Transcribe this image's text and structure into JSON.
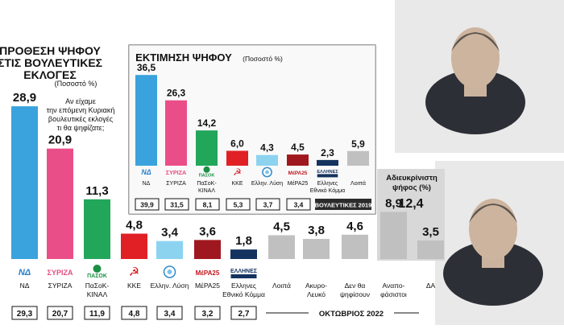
{
  "colors": {
    "nd": "#3aa2dd",
    "syriza": "#ea4e88",
    "pasok": "#22a65a",
    "kke": "#e02025",
    "elliniki_lysi": "#8cd3f0",
    "mera25": "#a0181f",
    "ellines": "#14335f",
    "other": "#c0c0c0",
    "inner_bg": "#f1f2f1",
    "band_dark": "#2b2b2b"
  },
  "chart_data": [
    {
      "type": "bar",
      "id": "main",
      "title": "ΠΡΟΘΕΣΗ ΨΗΦΟΥ ΣΤΙΣ ΒΟΥΛΕΥΤΙΚΕΣ ΕΚΛΟΓΕΣ",
      "title_lines": [
        "ΠΡΟΘΕΣΗ ΨΗΦΟΥ",
        "ΣΤΙΣ ΒΟΥΛΕΥΤΙΚΕΣ",
        "ΕΚΛΟΓΕΣ"
      ],
      "subtitle": "(Ποσοστό %)",
      "question_lines": [
        "Αν είχαμε",
        "την επόμενη Κυριακή",
        "βουλευτικές εκλογές",
        "τι θα ψηφίζατε;"
      ],
      "categories": [
        "ΝΔ",
        "ΣΥΡΙΖΑ",
        "ΠαΣοΚ-ΚΙΝΑΛ",
        "ΚΚΕ",
        "Ελλην. Λύση",
        "ΜέΡΑ25",
        "Ελληνες Εθνικό Κόμμα",
        "Λοιπά",
        "Ακυρο-Λευκό",
        "Δεν θα ψηφίσουν",
        "Αναπο-φάσιστοι",
        "ΔΑ"
      ],
      "category_lines": [
        [
          "ΝΔ"
        ],
        [
          "ΣΥΡΙΖΑ"
        ],
        [
          "ΠαΣοΚ-",
          "ΚΙΝΑΛ"
        ],
        [
          "ΚΚΕ"
        ],
        [
          "Ελλην. Λύση"
        ],
        [
          "ΜέΡΑ25"
        ],
        [
          "Ελληνες",
          "Εθνικό Κόμμα"
        ],
        [
          "Λοιπά"
        ],
        [
          "Ακυρο-",
          "Λευκό"
        ],
        [
          "Δεν θα",
          "ψηφίσουν"
        ],
        [
          "Αναπο-",
          "φάσιστοι"
        ],
        [
          "ΔΑ"
        ]
      ],
      "values": [
        28.9,
        20.9,
        11.3,
        4.8,
        3.4,
        3.6,
        1.8,
        4.5,
        3.8,
        4.6,
        8.9,
        3.5
      ],
      "value_labels": [
        "28,9",
        "20,9",
        "11,3",
        "4,8",
        "3,4",
        "3,6",
        "1,8",
        "4,5",
        "3,8",
        "4,6",
        "8,9",
        "3,5"
      ],
      "colors": [
        "#3aa2dd",
        "#ea4e88",
        "#22a65a",
        "#e02025",
        "#8cd3f0",
        "#a0181f",
        "#14335f",
        "#c0c0c0",
        "#c0c0c0",
        "#c0c0c0",
        "#c0c0c0",
        "#c0c0c0"
      ],
      "previous_values": [
        29.3,
        20.7,
        11.9,
        4.8,
        3.4,
        3.2,
        2.7
      ],
      "previous_labels": [
        "29,3",
        "20,7",
        "11,9",
        "4,8",
        "3,4",
        "3,2",
        "2,7"
      ],
      "period_label": "ΟΚΤΩΒΡΙΟΣ 2022",
      "undecided_box": {
        "title_lines": [
          "Αδιευκρίνιστη",
          "ψήφος (%)"
        ],
        "value": 12.4,
        "value_label": "12,4"
      }
    },
    {
      "type": "bar",
      "id": "estimate",
      "title": "ΕΚΤΙΜΗΣΗ ΨΗΦΟΥ",
      "subtitle": "(Ποσοστό %)",
      "categories": [
        "ΝΔ",
        "ΣΥΡΙΖΑ",
        "ΠαΣοΚ-ΚΙΝΑΛ",
        "ΚΚΕ",
        "Ελλην. Λύση",
        "ΜέΡΑ25",
        "Ελληνες Εθνικό Κόμμα",
        "Λοιπά"
      ],
      "category_lines": [
        [
          "ΝΔ"
        ],
        [
          "ΣΥΡΙΖΑ"
        ],
        [
          "ΠαΣοΚ-",
          "ΚΙΝΑΛ"
        ],
        [
          "ΚΚΕ"
        ],
        [
          "Ελλην. Λύση"
        ],
        [
          "ΜέΡΑ25"
        ],
        [
          "Ελληνες",
          "Εθνικό Κόμμα"
        ],
        [
          "Λοιπά"
        ]
      ],
      "values": [
        36.5,
        26.3,
        14.2,
        6.0,
        4.3,
        4.5,
        2.3,
        5.9
      ],
      "value_labels": [
        "36,5",
        "26,3",
        "14,2",
        "6,0",
        "4,3",
        "4,5",
        "2,3",
        "5,9"
      ],
      "colors": [
        "#3aa2dd",
        "#ea4e88",
        "#22a65a",
        "#e02025",
        "#8cd3f0",
        "#a0181f",
        "#14335f",
        "#c0c0c0"
      ],
      "previous_values": [
        39.9,
        31.5,
        8.1,
        5.3,
        3.7,
        3.4
      ],
      "previous_labels": [
        "39,9",
        "31,5",
        "8,1",
        "5,3",
        "3,7",
        "3,4"
      ],
      "period_label": "ΒΟΥΛΕΥΤΙΚΕΣ 2019"
    }
  ],
  "logos": {
    "nd": "ΝΔ",
    "syriza": "ΣΥΡΙΖΑ",
    "pasok": "ΠΑΣΟΚ",
    "pasok_small": "ΚΙΝΗΜΑ ΑΛΛΑΓΗΣ",
    "mera25": "ΜέΡΑ25",
    "ellines": "ΕΛΛΗΝΕΣ",
    "ellines_small": "ΕΘΝΙΚΟ ΚΟΜΜΑ"
  },
  "icons": [
    "nd-logo-icon",
    "syriza-logo-icon",
    "pasok-sun-icon",
    "kke-hammer-sickle-icon",
    "elliniki-lysi-logo-icon",
    "mera25-logo-icon",
    "ellines-logo-icon"
  ],
  "photos": [
    {
      "name": "photo-top-right"
    },
    {
      "name": "photo-bottom-right"
    }
  ]
}
